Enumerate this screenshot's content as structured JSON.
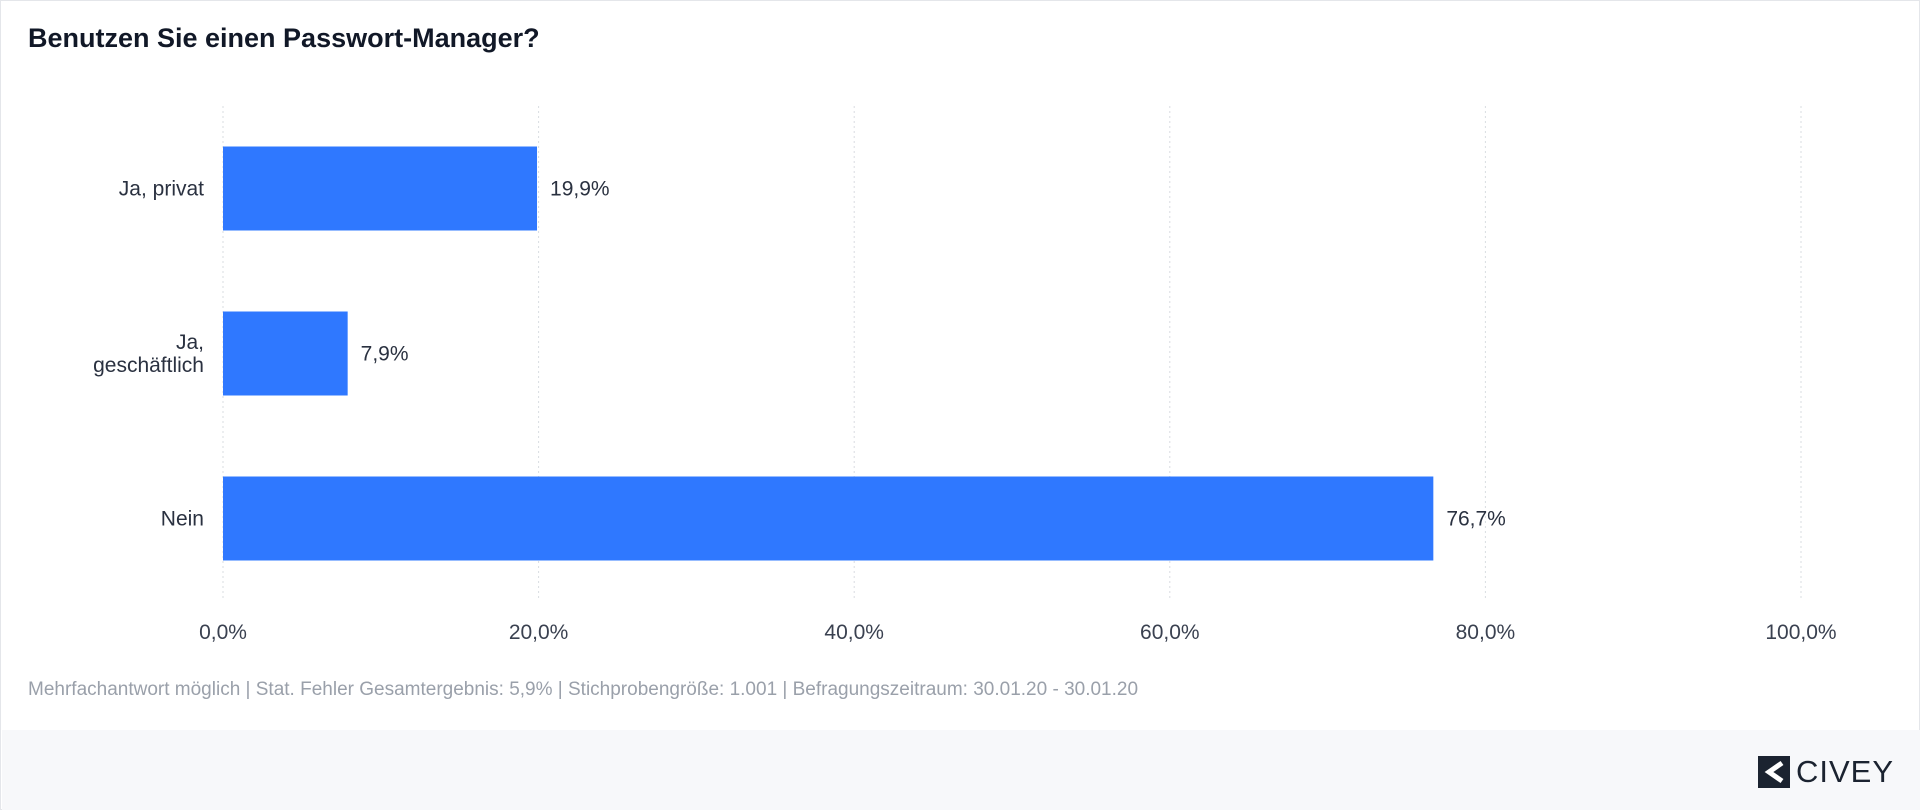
{
  "header": {
    "title": "Benutzen Sie einen Passwort-Manager?"
  },
  "chart_data": {
    "type": "bar",
    "orientation": "horizontal",
    "title": "Benutzen Sie einen Passwort-Manager?",
    "categories": [
      [
        "Ja, privat"
      ],
      [
        "Ja,",
        "geschäftlich"
      ],
      [
        "Nein"
      ]
    ],
    "values": [
      19.9,
      7.9,
      76.7
    ],
    "value_labels": [
      "19,9%",
      "7,9%",
      "76,7%"
    ],
    "xlim": [
      0,
      100
    ],
    "x_ticks": [
      0,
      20,
      40,
      60,
      80,
      100
    ],
    "x_tick_labels": [
      "0,0%",
      "20,0%",
      "40,0%",
      "60,0%",
      "80,0%",
      "100,0%"
    ],
    "grid": true,
    "bar_color": "#2f78ff"
  },
  "footnote": "Mehrfachantwort möglich | Stat. Fehler Gesamtergebnis: 5,9% | Stichprobengröße: 1.001 | Befragungszeitraum: 30.01.20 - 30.01.20",
  "brand": {
    "name": "CIVEY",
    "logo_icon": "civey-logo-icon"
  }
}
